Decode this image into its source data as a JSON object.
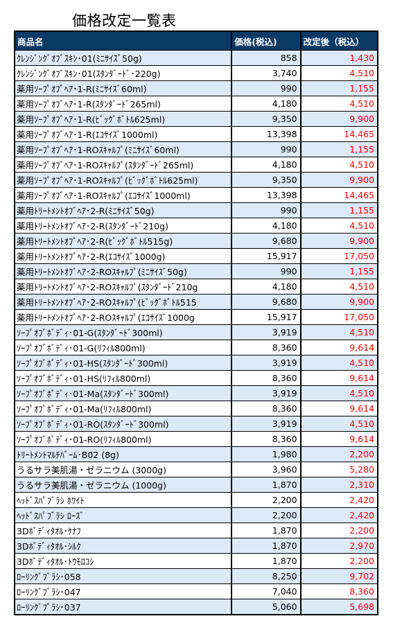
{
  "title": "価格改定一覧表",
  "colors": {
    "header_bg": "#0b3a66",
    "stripe": "#dce9f6",
    "new_price": "#ff0000"
  },
  "headers": {
    "name": "商品名",
    "old_price": "価格(税込)",
    "new_price": "改定後（税込）"
  },
  "rows": [
    {
      "name": "ｸﾚﾝｼﾞﾝｸﾞｵﾌﾞｽｷﾝ･01(ﾐﾆｻｲｽﾞ50g)",
      "old": "858",
      "new": "1,430"
    },
    {
      "name": "ｸﾚﾝｼﾞﾝｸﾞｵﾌﾞｽｷﾝ･01(ｽﾀﾝﾀﾞｰﾄﾞ･220g)",
      "old": "3,740",
      "new": "4,510"
    },
    {
      "name": "薬用ｿｰﾌﾟｵﾌﾞﾍｱ･1-R(ﾐﾆｻｲｽﾞ60ml)",
      "old": "990",
      "new": "1,155"
    },
    {
      "name": "薬用ｿｰﾌﾟｵﾌﾞﾍｱ･1-R(ｽﾀﾝﾀﾞｰﾄﾞ265ml)",
      "old": "4,180",
      "new": "4,510"
    },
    {
      "name": "薬用ｿｰﾌﾟｵﾌﾞﾍｱ･1-R(ﾋﾞｯｸﾞﾎﾞﾄﾙ625ml)",
      "old": "9,350",
      "new": "9,900"
    },
    {
      "name": "薬用ｿｰﾌﾟｵﾌﾞﾍｱ･1-R(ｴｺｻｲｽﾞ1000ml)",
      "old": "13,398",
      "new": "14,465"
    },
    {
      "name": "薬用ｿｰﾌﾟｵﾌﾞﾍｱ･1-ROｽｷｬﾙﾌﾟ(ﾐﾆｻｲｽﾞ60ml)",
      "old": "990",
      "new": "1,155"
    },
    {
      "name": "薬用ｿｰﾌﾟｵﾌﾞﾍｱ･1-ROｽｷｬﾙﾌﾟ(ｽﾀﾝﾀﾞｰﾄﾞ265ml)",
      "old": "4,180",
      "new": "4,510"
    },
    {
      "name": "薬用ｿｰﾌﾟｵﾌﾞﾍｱ･1-ROｽｷｬﾙﾌﾟ(ﾋﾞｯｸﾞﾎﾞﾄﾙ625ml)",
      "old": "9,350",
      "new": "9,900"
    },
    {
      "name": "薬用ｿｰﾌﾟｵﾌﾞﾍｱ･1-ROｽｷｬﾙﾌﾟ(ｴｺｻｲｽﾞ1000ml)",
      "old": "13,398",
      "new": "14,465"
    },
    {
      "name": "薬用ﾄﾘｰﾄﾒﾝﾄｵﾌﾞﾍｱ･2-R(ﾐﾆｻｲｽﾞ50g)",
      "old": "990",
      "new": "1,155"
    },
    {
      "name": "薬用ﾄﾘｰﾄﾒﾝﾄｵﾌﾞﾍｱ･2-R(ｽﾀﾝﾀﾞｰﾄﾞ210g)",
      "old": "4,180",
      "new": "4,510"
    },
    {
      "name": "薬用ﾄﾘｰﾄﾒﾝﾄｵﾌﾞﾍｱ･2-R(ﾋﾞｯｸﾞﾎﾞﾄﾙ515g)",
      "old": "9,680",
      "new": "9,900"
    },
    {
      "name": "薬用ﾄﾘｰﾄﾒﾝﾄｵﾌﾞﾍｱ･2-R(ｴｺｻｲｽﾞ1000g)",
      "old": "15,917",
      "new": "17,050"
    },
    {
      "name": "薬用ﾄﾘｰﾄﾒﾝﾄｵﾌﾞﾍｱ･2-ROｽｷｬﾙﾌﾟ(ﾐﾆｻｲｽﾞ50g)",
      "old": "990",
      "new": "1,155"
    },
    {
      "name": "薬用ﾄﾘｰﾄﾒﾝﾄｵﾌﾞﾍｱ･2-ROｽｷｬﾙﾌﾟ(ｽﾀﾝﾀﾞｰﾄﾞ210g",
      "old": "4,180",
      "new": "4,510"
    },
    {
      "name": "薬用ﾄﾘｰﾄﾒﾝﾄｵﾌﾞﾍｱ･2-ROｽｷｬﾙﾌﾟ(ﾋﾞｯｸﾞﾎﾞﾄﾙ515",
      "old": "9,680",
      "new": "9,900"
    },
    {
      "name": "薬用ﾄﾘｰﾄﾒﾝﾄｵﾌﾞﾍｱ･2-ROｽｷｬﾙﾌﾟ(ｴｺｻｲｽﾞ1000g",
      "old": "15,917",
      "new": "17,050"
    },
    {
      "name": "ｿｰﾌﾟｵﾌﾞﾎﾞﾃﾞｨ･01-G(ｽﾀﾝﾀﾞｰﾄﾞ300ml)",
      "old": "3,919",
      "new": "4,510"
    },
    {
      "name": "ｿｰﾌﾟｵﾌﾞﾎﾞﾃﾞｨ･01-G(ﾘﾌｨﾙ800ml)",
      "old": "8,360",
      "new": "9,614"
    },
    {
      "name": "ｿｰﾌﾟｵﾌﾞﾎﾞﾃﾞｨ･01-HS(ｽﾀﾝﾀﾞｰﾄﾞ300ml)",
      "old": "3,919",
      "new": "4,510"
    },
    {
      "name": "ｿｰﾌﾟｵﾌﾞﾎﾞﾃﾞｨ･01-HS(ﾘﾌｨﾙ800ml)",
      "old": "8,360",
      "new": "9,614"
    },
    {
      "name": "ｿｰﾌﾟｵﾌﾞﾎﾞﾃﾞｨ･01-Ma(ｽﾀﾝﾀﾞｰﾄﾞ300ml)",
      "old": "3,919",
      "new": "4,510"
    },
    {
      "name": "ｿｰﾌﾟｵﾌﾞﾎﾞﾃﾞｨ･01-Ma(ﾘﾌｨﾙ800ml)",
      "old": "8,360",
      "new": "9,614"
    },
    {
      "name": "ｿｰﾌﾟｵﾌﾞﾎﾞﾃﾞｨ･01-RO(ｽﾀﾝﾀﾞｰﾄﾞ300ml)",
      "old": "3,919",
      "new": "4,510"
    },
    {
      "name": "ｿｰﾌﾟｵﾌﾞﾎﾞﾃﾞｨ･01-RO(ﾘﾌｨﾙ800ml)",
      "old": "8,360",
      "new": "9,614"
    },
    {
      "name": "ﾄﾘｰﾄﾒﾝﾄﾏﾙﾁﾊﾞｰﾑ･B02 (8g)",
      "old": "1,980",
      "new": "2,200"
    },
    {
      "name": "うるサラ美肌湯・ゼラニウム (3000g)",
      "old": "3,960",
      "new": "5,280"
    },
    {
      "name": "うるサラ美肌湯・ゼラニウム (1000g)",
      "old": "1,870",
      "new": "2,310"
    },
    {
      "name": "ﾍｯﾄﾞｽﾊﾟﾌﾞﾗｼ ﾎﾜｲﾄ",
      "old": "2,200",
      "new": "2,420"
    },
    {
      "name": "ﾍｯﾄﾞｽﾊﾟﾌﾞﾗｼ ﾛｰｽﾞ",
      "old": "2,200",
      "new": "2,420"
    },
    {
      "name": "3Dﾎﾞﾃﾞｨﾀｵﾙ･ｹﾅﾌ",
      "old": "1,870",
      "new": "2,200"
    },
    {
      "name": "3Dﾎﾞﾃﾞｨﾀｵﾙ･ｼﾙｸ",
      "old": "1,870",
      "new": "2,970"
    },
    {
      "name": "3Dﾎﾞﾃﾞｨﾀｵﾙ･ﾄｳﾓﾛｺｼ",
      "old": "1,870",
      "new": "2,200"
    },
    {
      "name": "ﾛｰﾘﾝｸﾞﾌﾞﾗｼ･058",
      "old": "8,250",
      "new": "9,702"
    },
    {
      "name": "ﾛｰﾘﾝｸﾞﾌﾞﾗｼ･047",
      "old": "7,040",
      "new": "8,360"
    },
    {
      "name": "ﾛｰﾘﾝｸﾞﾌﾞﾗｼ･037",
      "old": "5,060",
      "new": "5,698"
    }
  ]
}
